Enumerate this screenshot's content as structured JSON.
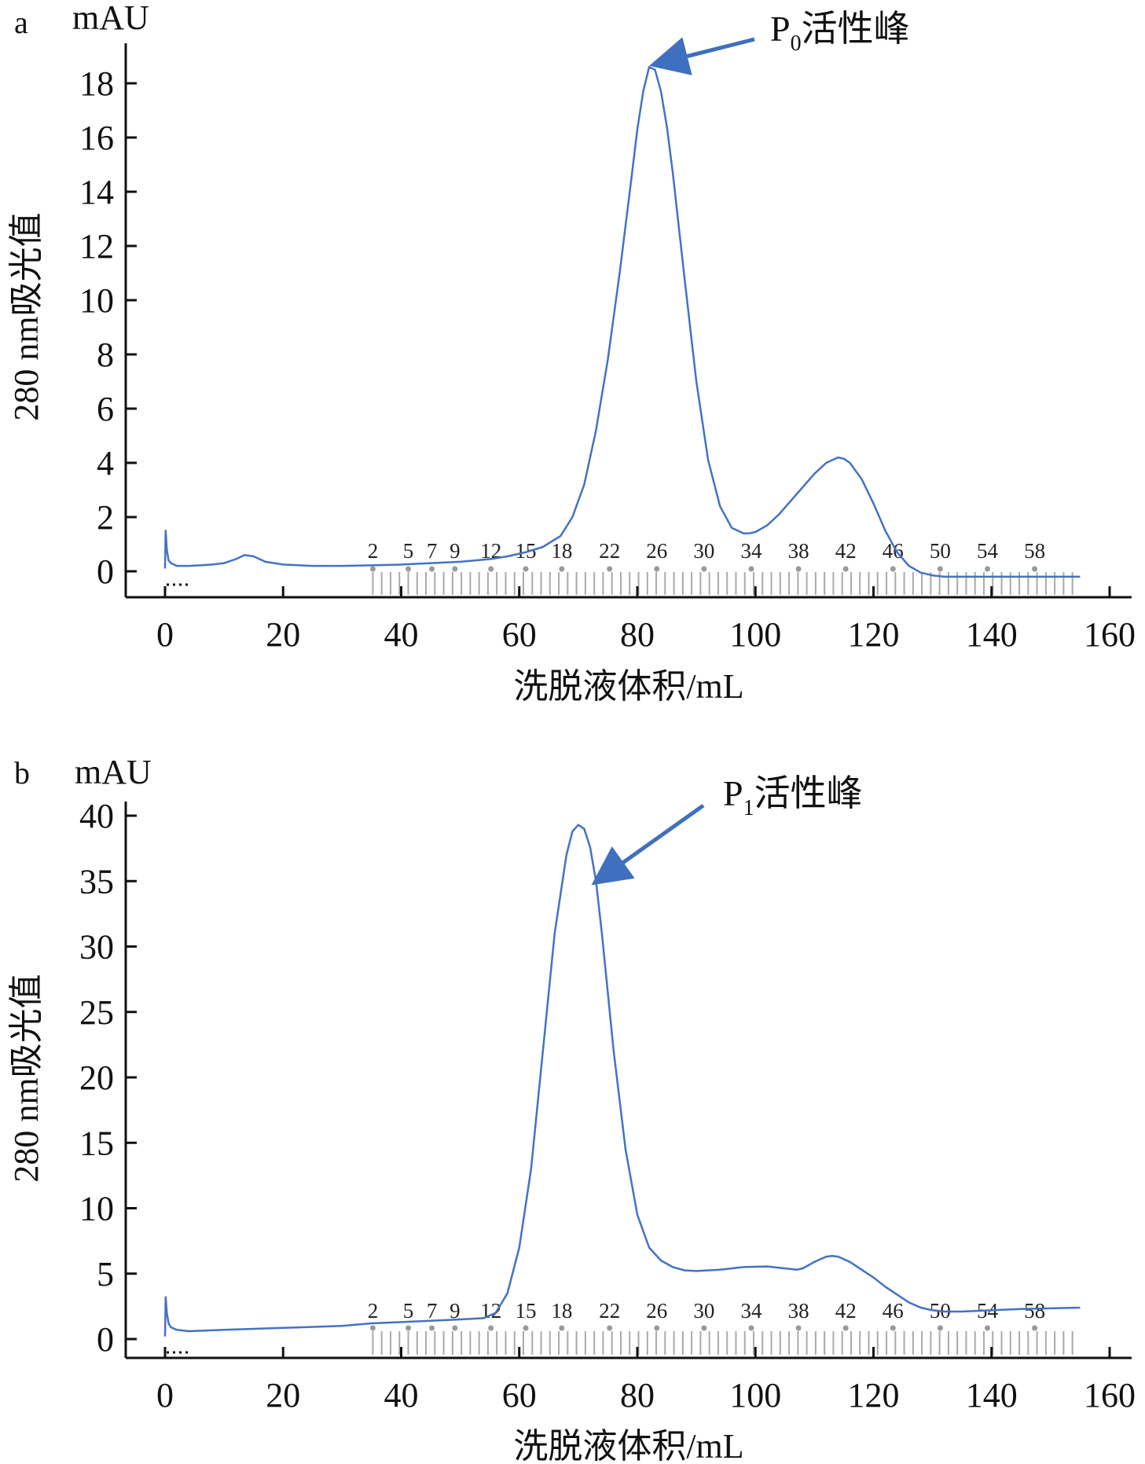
{
  "colors": {
    "trace": "#4472c4",
    "arrow": "#3f6fbf",
    "axis": "#111111",
    "fraction": "#aaaaaa"
  },
  "chart_data": [
    {
      "type": "line",
      "panel_label": "a",
      "y_unit": "mAU",
      "xlabel": "洗脱液体积/mL",
      "ylabel": "280 nm吸光值",
      "xlim": [
        0,
        160
      ],
      "ylim": [
        -0.8,
        19.4
      ],
      "xticks": [
        0,
        20,
        40,
        60,
        80,
        100,
        120,
        140,
        160
      ],
      "yticks": [
        0,
        2,
        4,
        6,
        8,
        10,
        12,
        14,
        16,
        18
      ],
      "annotation": {
        "text_main": "P",
        "text_sub": "0",
        "text_suffix": "活性峰",
        "x": 82.5,
        "y": 18.6
      },
      "fraction_labels": [
        "2",
        "5",
        "7",
        "9",
        "12",
        "15",
        "18",
        "22",
        "26",
        "30",
        "34",
        "38",
        "42",
        "46",
        "50",
        "54",
        "58"
      ],
      "fraction_label_x": [
        35.2,
        41.2,
        45.2,
        49.1,
        55.2,
        61.1,
        67.2,
        75.3,
        83.3,
        91.3,
        99.3,
        107.3,
        115.3,
        123.3,
        131.3,
        139.3,
        147.3
      ],
      "series": [
        {
          "x": [
            0,
            0.1,
            0.3,
            0.6,
            1,
            2,
            4,
            6,
            8,
            10,
            12,
            13.5,
            15,
            17,
            20,
            25,
            30,
            35,
            40,
            45,
            50,
            55,
            58,
            61,
            64,
            67,
            69,
            71,
            73,
            75,
            77,
            79,
            80,
            81,
            82,
            83,
            84,
            85,
            86,
            88,
            90,
            92,
            94,
            96,
            98,
            99,
            100,
            102,
            104,
            106,
            108,
            110,
            112,
            114,
            115,
            116,
            118,
            120,
            122,
            124,
            126,
            128,
            130,
            132,
            135,
            140,
            145,
            150,
            155
          ],
          "y": [
            0.1,
            1.5,
            0.8,
            0.4,
            0.3,
            0.2,
            0.2,
            0.22,
            0.25,
            0.3,
            0.45,
            0.6,
            0.55,
            0.35,
            0.25,
            0.2,
            0.2,
            0.22,
            0.25,
            0.3,
            0.35,
            0.45,
            0.55,
            0.7,
            0.9,
            1.3,
            2.0,
            3.2,
            5.2,
            7.8,
            11.0,
            14.5,
            16.3,
            17.7,
            18.6,
            18.5,
            17.7,
            16.4,
            14.7,
            10.8,
            7.0,
            4.1,
            2.4,
            1.6,
            1.4,
            1.4,
            1.45,
            1.7,
            2.1,
            2.6,
            3.1,
            3.6,
            4.0,
            4.2,
            4.15,
            4.0,
            3.4,
            2.5,
            1.5,
            0.7,
            0.2,
            -0.05,
            -0.15,
            -0.2,
            -0.2,
            -0.2,
            -0.2,
            -0.2,
            -0.2
          ]
        }
      ]
    },
    {
      "type": "line",
      "panel_label": "b",
      "y_unit": "mAU",
      "xlabel": "洗脱液体积/mL",
      "ylabel": "280 nm吸光值",
      "xlim": [
        0,
        160
      ],
      "ylim": [
        -1.7,
        41.5
      ],
      "xticks": [
        0,
        20,
        40,
        60,
        80,
        100,
        120,
        140,
        160
      ],
      "yticks": [
        0,
        5,
        10,
        15,
        20,
        25,
        30,
        35,
        40
      ],
      "annotation": {
        "text_main": "P",
        "text_sub": "1",
        "text_suffix": "活性峰",
        "x": 72.5,
        "y": 34.8
      },
      "fraction_labels": [
        "2",
        "5",
        "7",
        "9",
        "12",
        "15",
        "18",
        "22",
        "26",
        "30",
        "34",
        "38",
        "42",
        "46",
        "50",
        "54",
        "58"
      ],
      "fraction_label_x": [
        35.2,
        41.2,
        45.2,
        49.1,
        55.2,
        61.1,
        67.2,
        75.3,
        83.3,
        91.3,
        99.3,
        107.3,
        115.3,
        123.3,
        131.3,
        139.3,
        147.3
      ],
      "series": [
        {
          "x": [
            0,
            0.1,
            0.3,
            0.6,
            1,
            2,
            4,
            10,
            20,
            30,
            35,
            40,
            45,
            50,
            54,
            56,
            58,
            60,
            62,
            64,
            66,
            68,
            69,
            70,
            71,
            72,
            73,
            74,
            76,
            78,
            80,
            82,
            84,
            86,
            88,
            90,
            94,
            98,
            102,
            106,
            107,
            108,
            110,
            112,
            113,
            114,
            116,
            118,
            120,
            122,
            124,
            126,
            128,
            130,
            132,
            135,
            140,
            145,
            150,
            155
          ],
          "y": [
            0.2,
            3.2,
            2.0,
            1.2,
            0.9,
            0.7,
            0.6,
            0.7,
            0.85,
            1.0,
            1.2,
            1.3,
            1.4,
            1.5,
            1.6,
            2.0,
            3.5,
            7.0,
            13.0,
            22.0,
            31.0,
            37.0,
            38.8,
            39.3,
            39.0,
            37.6,
            35.0,
            31.0,
            22.0,
            14.5,
            9.5,
            7.0,
            6.0,
            5.5,
            5.25,
            5.2,
            5.3,
            5.5,
            5.55,
            5.35,
            5.3,
            5.4,
            5.9,
            6.3,
            6.35,
            6.3,
            5.9,
            5.3,
            4.7,
            4.0,
            3.4,
            2.8,
            2.4,
            2.2,
            2.1,
            2.1,
            2.2,
            2.3,
            2.35,
            2.4
          ]
        }
      ]
    }
  ]
}
